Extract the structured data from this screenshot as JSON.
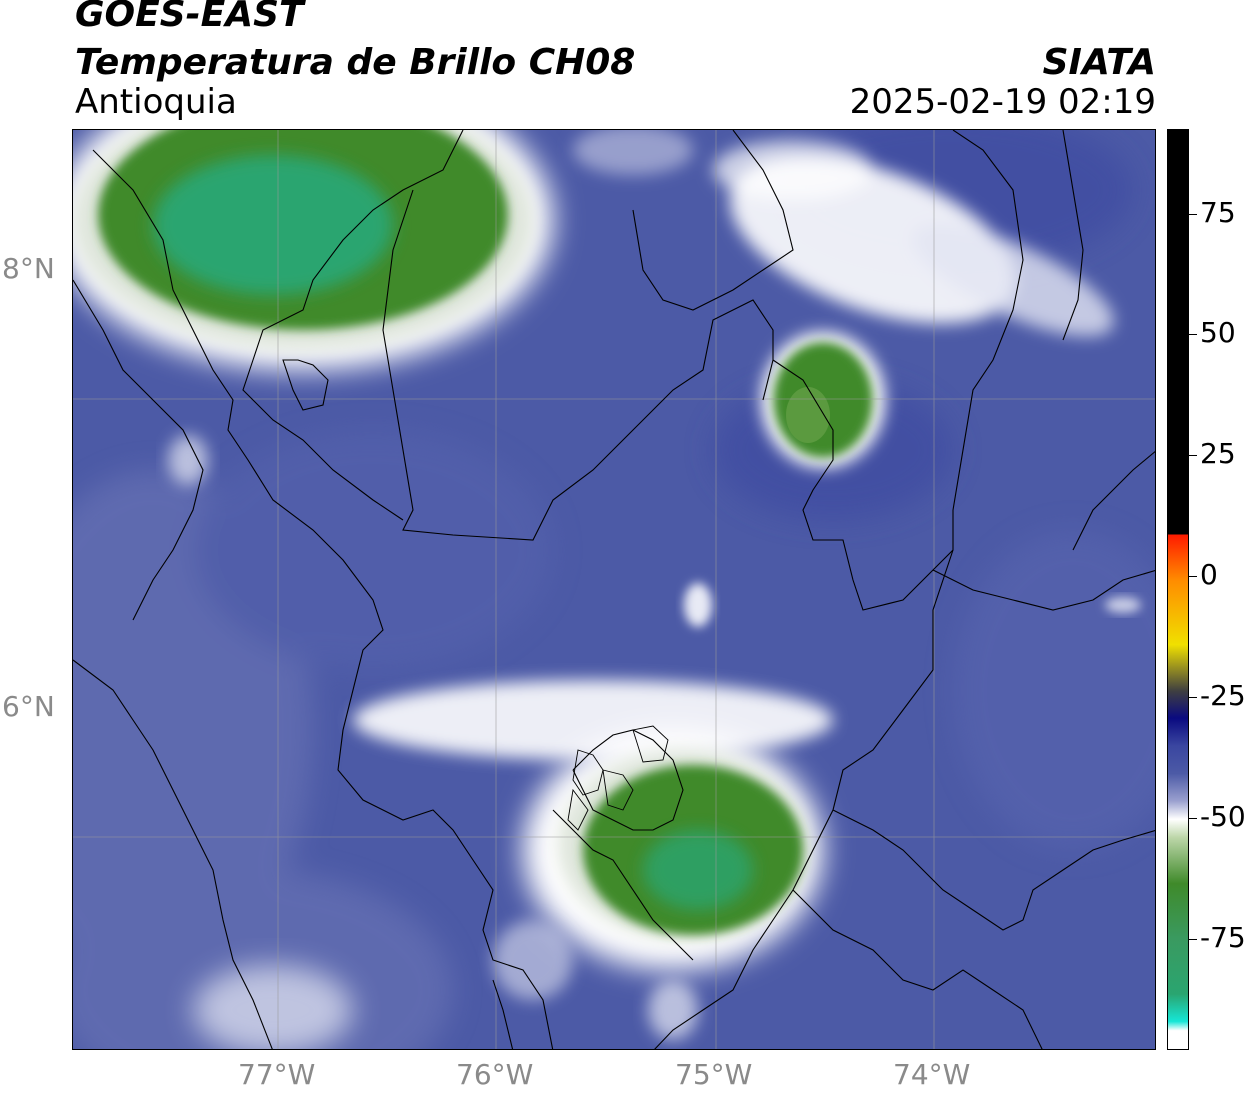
{
  "header": {
    "satellite": "GOES-EAST",
    "product": "Temperatura de Brillo CH08",
    "region": "Antioquia",
    "organization": "SIATA",
    "datetime": "2025-02-19 02:19"
  },
  "axes": {
    "latitude_labels": [
      "8°N",
      "6°N"
    ],
    "longitude_labels": [
      "77°W",
      "76°W",
      "75°W",
      "74°W"
    ]
  },
  "colorbar": {
    "tick_labels": [
      "75",
      "50",
      "25",
      "0",
      "-25",
      "-50",
      "-75"
    ],
    "colors": {
      "background_cold": "#4c5aa6",
      "background_deep": "#3a46a0",
      "white": "#ffffff",
      "green": "#3f8a2a",
      "green_core": "#2aa570",
      "cyan": "#16e6d6",
      "yellow": "#f0e000",
      "orange": "#ff8c00",
      "red": "#ff1a00",
      "black": "#000000"
    }
  }
}
